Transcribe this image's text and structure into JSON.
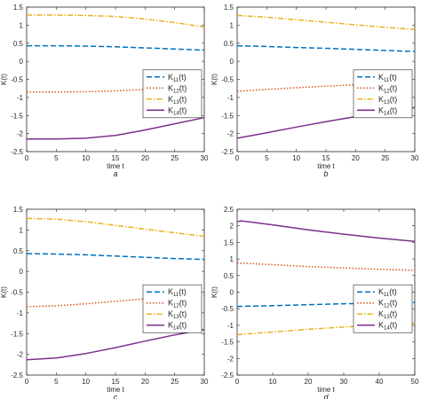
{
  "chart_data": [
    {
      "type": "line",
      "caption": "a",
      "xlabel": "time t",
      "ylabel": "K(t)",
      "xlim": [
        0,
        30
      ],
      "ylim": [
        -2.5,
        1.5
      ],
      "xticks": [
        "0",
        "5",
        "10",
        "15",
        "20",
        "25",
        "30"
      ],
      "yticks": [
        "-2.5",
        "-2",
        "-1.5",
        "-1",
        "-0.5",
        "0",
        "0.5",
        "1",
        "1.5"
      ],
      "legend_position": "center-right",
      "series": [
        {
          "name": "K11(t)",
          "main": "K",
          "sub": "11",
          "suffix": "(t)",
          "color": "#0072BD",
          "style": "dashed",
          "x": [
            0,
            5,
            10,
            15,
            20,
            25,
            30
          ],
          "y": [
            0.43,
            0.43,
            0.42,
            0.4,
            0.37,
            0.34,
            0.31
          ]
        },
        {
          "name": "K12(t)",
          "main": "K",
          "sub": "12",
          "suffix": "(t)",
          "color": "#D95319",
          "style": "dotted",
          "x": [
            0,
            5,
            10,
            15,
            20,
            25,
            30
          ],
          "y": [
            -0.85,
            -0.85,
            -0.84,
            -0.82,
            -0.78,
            -0.71,
            -0.63
          ]
        },
        {
          "name": "K13(t)",
          "main": "K",
          "sub": "13",
          "suffix": "(t)",
          "color": "#EDB120",
          "style": "dashdot",
          "x": [
            0,
            5,
            10,
            15,
            20,
            25,
            30
          ],
          "y": [
            1.28,
            1.28,
            1.27,
            1.24,
            1.17,
            1.07,
            0.95
          ]
        },
        {
          "name": "K14(t)",
          "main": "K",
          "sub": "14",
          "suffix": "(t)",
          "color": "#7E2F8E",
          "style": "solid",
          "x": [
            0,
            5,
            10,
            15,
            20,
            25,
            30
          ],
          "y": [
            -2.15,
            -2.15,
            -2.13,
            -2.05,
            -1.9,
            -1.73,
            -1.56
          ]
        }
      ]
    },
    {
      "type": "line",
      "caption": "b",
      "xlabel": "time t",
      "ylabel": "K(t)",
      "xlim": [
        0,
        30
      ],
      "ylim": [
        -2.5,
        1.5
      ],
      "xticks": [
        "0",
        "5",
        "10",
        "15",
        "20",
        "25",
        "30"
      ],
      "yticks": [
        "-2.5",
        "-2",
        "-1.5",
        "-1",
        "-0.5",
        "0",
        "0.5",
        "1",
        "1.5"
      ],
      "legend_position": "center-right",
      "series": [
        {
          "name": "K11(t)",
          "main": "K",
          "sub": "11",
          "suffix": "(t)",
          "color": "#0072BD",
          "style": "dashed",
          "x": [
            0,
            5,
            10,
            15,
            20,
            25,
            30
          ],
          "y": [
            0.43,
            0.41,
            0.38,
            0.36,
            0.33,
            0.3,
            0.27
          ]
        },
        {
          "name": "K12(t)",
          "main": "K",
          "sub": "12",
          "suffix": "(t)",
          "color": "#D95319",
          "style": "dotted",
          "x": [
            0,
            5,
            10,
            15,
            20,
            25,
            30
          ],
          "y": [
            -0.83,
            -0.78,
            -0.73,
            -0.69,
            -0.65,
            -0.6,
            -0.56
          ]
        },
        {
          "name": "K13(t)",
          "main": "K",
          "sub": "13",
          "suffix": "(t)",
          "color": "#EDB120",
          "style": "dashdot",
          "x": [
            0,
            5,
            10,
            15,
            20,
            25,
            30
          ],
          "y": [
            1.27,
            1.22,
            1.15,
            1.08,
            1.01,
            0.94,
            0.88
          ]
        },
        {
          "name": "K14(t)",
          "main": "K",
          "sub": "14",
          "suffix": "(t)",
          "color": "#7E2F8E",
          "style": "solid",
          "x": [
            0,
            5,
            10,
            15,
            20,
            25,
            30
          ],
          "y": [
            -2.13,
            -1.98,
            -1.82,
            -1.67,
            -1.53,
            -1.4,
            -1.28
          ]
        }
      ]
    },
    {
      "type": "line",
      "caption": "c",
      "xlabel": "time t",
      "ylabel": "K(t)",
      "xlim": [
        0,
        30
      ],
      "ylim": [
        -2.5,
        1.5
      ],
      "xticks": [
        "0",
        "5",
        "10",
        "15",
        "20",
        "25",
        "30"
      ],
      "yticks": [
        "-2.5",
        "-2",
        "-1.5",
        "-1",
        "-0.5",
        "0",
        "0.5",
        "1",
        "1.5"
      ],
      "legend_position": "center-right",
      "series": [
        {
          "name": "K11(t)",
          "main": "K",
          "sub": "11",
          "suffix": "(t)",
          "color": "#0072BD",
          "style": "dashed",
          "x": [
            0,
            5,
            10,
            15,
            20,
            25,
            30
          ],
          "y": [
            0.43,
            0.42,
            0.4,
            0.37,
            0.34,
            0.31,
            0.29
          ]
        },
        {
          "name": "K12(t)",
          "main": "K",
          "sub": "12",
          "suffix": "(t)",
          "color": "#D95319",
          "style": "dotted",
          "x": [
            0,
            5,
            10,
            15,
            20,
            25,
            30
          ],
          "y": [
            -0.85,
            -0.83,
            -0.78,
            -0.72,
            -0.66,
            -0.6,
            -0.56
          ]
        },
        {
          "name": "K13(t)",
          "main": "K",
          "sub": "13",
          "suffix": "(t)",
          "color": "#EDB120",
          "style": "dashdot",
          "x": [
            0,
            5,
            10,
            15,
            20,
            25,
            30
          ],
          "y": [
            1.28,
            1.26,
            1.2,
            1.11,
            1.02,
            0.93,
            0.85
          ]
        },
        {
          "name": "K14(t)",
          "main": "K",
          "sub": "14",
          "suffix": "(t)",
          "color": "#7E2F8E",
          "style": "solid",
          "x": [
            0,
            5,
            10,
            15,
            20,
            25,
            30
          ],
          "y": [
            -2.13,
            -2.09,
            -1.98,
            -1.84,
            -1.68,
            -1.53,
            -1.4
          ]
        }
      ]
    },
    {
      "type": "line",
      "caption": "d",
      "xlabel": "time t",
      "ylabel": "K(t)",
      "xlim": [
        0,
        50
      ],
      "ylim": [
        -2.5,
        2.5
      ],
      "xticks": [
        "0",
        "10",
        "20",
        "30",
        "40",
        "50"
      ],
      "yticks": [
        "-2.5",
        "-2",
        "-1.5",
        "-1",
        "-0.5",
        "0",
        "0.5",
        "1",
        "1.5",
        "2",
        "2.5"
      ],
      "legend_position": "center-right",
      "series": [
        {
          "name": "K11(t)",
          "main": "K",
          "sub": "11",
          "suffix": "(t)",
          "color": "#0072BD",
          "style": "dashed",
          "x": [
            0,
            10,
            20,
            30,
            40,
            50
          ],
          "y": [
            -0.43,
            -0.41,
            -0.38,
            -0.35,
            -0.33,
            -0.31
          ]
        },
        {
          "name": "K12(t)",
          "main": "K",
          "sub": "12",
          "suffix": "(t)",
          "color": "#D95319",
          "style": "dotted",
          "x": [
            0,
            10,
            20,
            30,
            40,
            50
          ],
          "y": [
            0.88,
            0.83,
            0.77,
            0.73,
            0.69,
            0.66
          ]
        },
        {
          "name": "K13(t)",
          "main": "K",
          "sub": "13",
          "suffix": "(t)",
          "color": "#EDB120",
          "style": "dashdot",
          "x": [
            0,
            10,
            20,
            30,
            40,
            50
          ],
          "y": [
            -1.28,
            -1.2,
            -1.12,
            -1.05,
            -0.99,
            -0.93
          ]
        },
        {
          "name": "K14(t)",
          "main": "K",
          "sub": "14",
          "suffix": "(t)",
          "color": "#7E2F8E",
          "style": "solid",
          "x": [
            0,
            1,
            2,
            10,
            20,
            30,
            40,
            50
          ],
          "y": [
            2.12,
            2.15,
            2.14,
            2.03,
            1.88,
            1.75,
            1.63,
            1.53
          ]
        }
      ]
    }
  ]
}
